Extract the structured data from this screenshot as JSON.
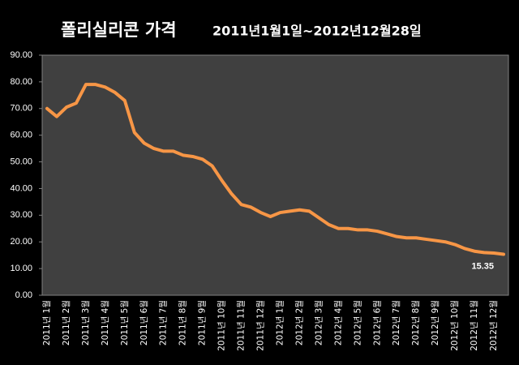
{
  "chart_data": {
    "type": "line",
    "title": "폴리실리콘 가격",
    "subtitle": "2011년1월1일~2012년12월28일",
    "categories": [
      "2011년 1월",
      null,
      "2011년 2월",
      null,
      "2011년 3월",
      null,
      "2011년 4월",
      null,
      "2011년 5월",
      null,
      "2011년 6월",
      null,
      "2011년 7월",
      null,
      "2011년 8월",
      null,
      "2011년 9월",
      null,
      "2011년 10월",
      null,
      "2011년 11월",
      null,
      "2011년 12월",
      null,
      "2012년 1월",
      null,
      "2012년 2월",
      null,
      "2012년 3월",
      null,
      "2012년 4월",
      null,
      "2012년 5월",
      null,
      "2012년 6월",
      null,
      "2012년 7월",
      null,
      "2012년 8월",
      null,
      "2012년 9월",
      null,
      "2012년 10월",
      null,
      "2012년 11월",
      null,
      "2012년 12월",
      null
    ],
    "series": [
      {
        "name": "폴리실리콘",
        "color": "#f79646",
        "values": [
          70,
          67,
          70.5,
          72,
          79,
          79,
          78,
          76,
          73,
          61,
          57,
          55,
          54,
          54,
          52.5,
          52,
          51,
          48.5,
          43,
          38,
          34,
          33,
          31,
          29.5,
          31,
          31.5,
          32,
          31.5,
          29,
          26.5,
          25,
          25,
          24.5,
          24.5,
          24,
          23,
          22,
          21.5,
          21.5,
          21,
          20.5,
          20,
          19,
          17.5,
          16.5,
          16,
          15.8,
          15.35
        ]
      }
    ],
    "ylim": [
      0,
      90
    ],
    "yticks": [
      {
        "value": 0,
        "label": "0.00"
      },
      {
        "value": 10,
        "label": "10.00"
      },
      {
        "value": 20,
        "label": "20.00"
      },
      {
        "value": 30,
        "label": "30.00"
      },
      {
        "value": 40,
        "label": "40.00"
      },
      {
        "value": 50,
        "label": "50.00"
      },
      {
        "value": 60,
        "label": "60.00"
      },
      {
        "value": 70,
        "label": "70.00"
      },
      {
        "value": 80,
        "label": "80.00"
      },
      {
        "value": 90,
        "label": "90.00"
      }
    ],
    "grid": false
  }
}
